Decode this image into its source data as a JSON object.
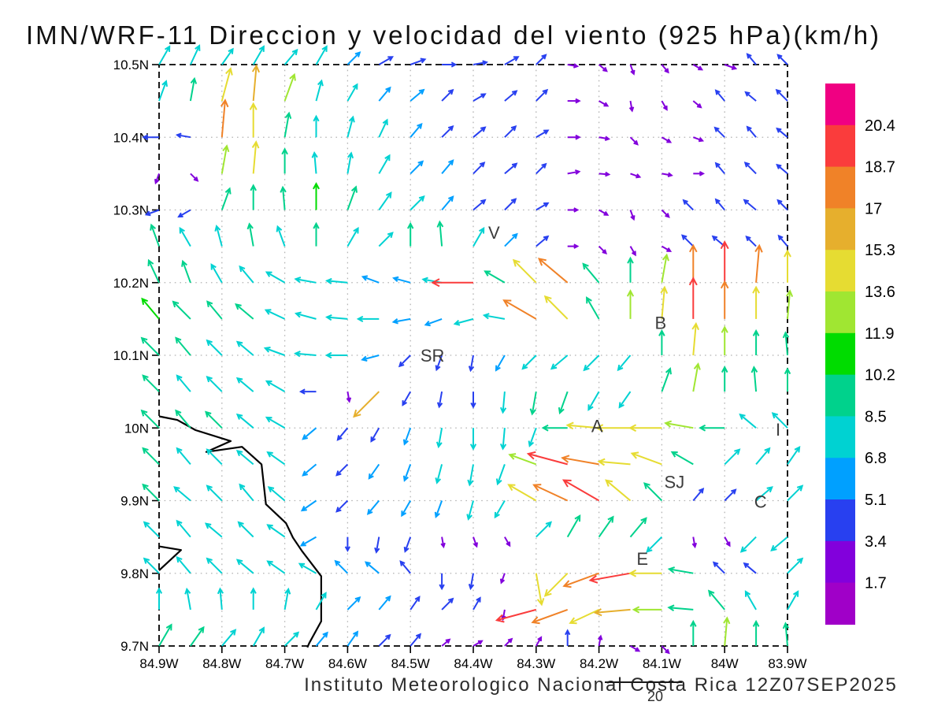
{
  "chart_data": {
    "type": "vector-field-map",
    "title": "IMN/WRF-11 Direccion y velocidad del viento (925 hPa)(km/h)",
    "units": "km/h",
    "pressure_level": "925 hPa",
    "model": "IMN/WRF-11",
    "footer": {
      "text": "Instituto Meteorologico Nacional Costa Rica  12Z07SEP2025",
      "page_number": "20"
    },
    "axes": {
      "lon_range": [
        -84.9,
        -83.9
      ],
      "lat_range": [
        9.7,
        10.5
      ],
      "x_tick_labels": [
        "84.9W",
        "84.8W",
        "84.7W",
        "84.6W",
        "84.5W",
        "84.4W",
        "84.3W",
        "84.2W",
        "84.1W",
        "84W",
        "83.9W"
      ],
      "y_tick_labels": [
        "10.5N",
        "10.4N",
        "10.3N",
        "10.2N",
        "10.1N",
        "10N",
        "9.9N",
        "9.8N",
        "9.7N"
      ],
      "grid": "dotted 0.1 degree"
    },
    "colorbar": {
      "position": "right",
      "boundary_labels": [
        "20.4",
        "18.7",
        "17",
        "15.3",
        "13.6",
        "11.9",
        "10.2",
        "8.5",
        "6.8",
        "5.1",
        "3.4",
        "1.7"
      ],
      "levels": [
        1.7,
        3.4,
        5.1,
        6.8,
        8.5,
        10.2,
        11.9,
        13.6,
        15.3,
        17,
        18.7,
        20.4
      ],
      "colors_low_to_high": [
        "#A000C8",
        "#8200DC",
        "#2840F0",
        "#00A0FF",
        "#00D2D2",
        "#00D28C",
        "#00DC00",
        "#A0E632",
        "#E6DC32",
        "#E6AF2D",
        "#F08228",
        "#FA3C3C",
        "#F00082"
      ]
    },
    "stations": [
      {
        "label": "V",
        "lon": -84.367,
        "lat": 10.268
      },
      {
        "label": "B",
        "lon": -84.102,
        "lat": 10.144
      },
      {
        "label": "SR",
        "lon": -84.465,
        "lat": 10.099
      },
      {
        "label": "A",
        "lon": -84.203,
        "lat": 10.002
      },
      {
        "label": "I",
        "lon": -83.915,
        "lat": 9.997
      },
      {
        "label": "SJ",
        "lon": -84.08,
        "lat": 9.925
      },
      {
        "label": "C",
        "lon": -83.943,
        "lat": 9.898
      },
      {
        "label": "E",
        "lon": -84.131,
        "lat": 9.819
      }
    ],
    "coastlines": [
      [
        [
          -84.9,
          10.016
        ],
        [
          -84.871,
          10.011
        ],
        [
          -84.842,
          9.997
        ],
        [
          -84.786,
          9.982
        ],
        [
          -84.825,
          9.967
        ],
        [
          -84.768,
          9.974
        ],
        [
          -84.737,
          9.95
        ],
        [
          -84.73,
          9.895
        ],
        [
          -84.698,
          9.869
        ],
        [
          -84.687,
          9.849
        ],
        [
          -84.672,
          9.83
        ],
        [
          -84.642,
          9.796
        ],
        [
          -84.642,
          9.734
        ],
        [
          -84.661,
          9.704
        ],
        [
          -84.664,
          9.698
        ]
      ],
      [
        [
          -84.9,
          9.837
        ],
        [
          -84.865,
          9.832
        ],
        [
          -84.9,
          9.804
        ]
      ]
    ],
    "wind": {
      "note": "dir:speed tokens; dir degrees toward (0=N up, 90=E right), speed km/h; grid lon -84.9..-83.9 step 0.05, lat 10.5..9.7 step -0.05",
      "grid": {
        "lon0": -84.9,
        "dlon": 0.05,
        "ncols": 21,
        "lat0": 10.5,
        "dlat": -0.05,
        "nrows": 17
      },
      "rows": [
        "30:8 25:8 35:7 30:8 40:7 30:8 45:6 60:5 70:5 90:4 80:4 60:5 45:4 100:2 130:2 160:2 140:2 120:2 110:3 320:4 315:4",
        "20:8 10:9 15:15 5:16 20:12 15:8 30:7 40:6 50:6 45:5 60:4 50:5 45:5 90:3 120:2 170:2 150:2 130:2 320:4 310:4 315:5",
        "270:5 280:4 5:17 0:15 10:10 0:8 15:8 25:7 40:6 45:5 50:5 45:5 60:4 90:3 100:2 135:2 120:2 110:2 315:4 320:4 310:4",
        "200:2 135:2 10:12 5:14 0:10 355:8 10:8 30:8 45:6 40:6 45:5 50:5 45:4 80:3 95:2 110:2 100:2 90:2 320:4 315:5 310:4",
        "250:4 240:4 20:9 0:10 355:9 0:11 20:10 35:8 45:7 40:6 50:5 45:5 60:4 90:2 120:2 160:2 135:2 315:4 320:4 310:5 315:4",
        "340:9 330:8 345:8 350:9 340:8 0:9 30:8 45:7 0:9 355:10 30:8 45:6 50:5 90:2 135:2 150:2 120:2 315:5 310:5 315:4 320:4",
        "335:10 340:9 330:8 320:8 300:8 280:8 275:8 290:6 285:6 280:7 270:19 300:9 315:14 310:17 320:10 0:10 10:12 0:17 0:19 5:17 0:14",
        "320:11 315:10 320:9 310:9 295:8 285:8 275:8 270:8 260:6 250:6 255:7 280:8 300:17 315:14 330:10 0:12 5:14 0:19 0:17 0:14 5:12",
        "315:10 320:9 315:8 310:8 290:8 275:8 270:8 255:6 225:5 200:5 190:5 210:6 225:7 230:8 225:8 220:7 0:10 5:14 0:12 0:10 355:9",
        "315:9 320:8 315:8 310:8 300:8 270:5 170:2 225:16 210:5 190:5 180:5 185:8 190:9 200:9 210:8 215:7 20:10 10:12 0:10 355:10 0:9",
        "315:10 320:9 315:9 310:8 300:8 230:6 220:5 210:5 200:6 190:7 180:8 185:8 200:7 270:10 275:14 270:15 270:14 280:12 270:10 310:8 315:8",
        "315:9 320:8 315:8 310:8 305:8 230:6 225:5 215:6 200:6 195:7 190:8 200:8 290:12 285:19 280:17 275:14 290:14 300:10 45:8 40:8 35:8",
        "315:9 310:8 315:8 320:8 310:8 235:6 225:5 220:6 210:6 200:6 195:7 210:7 300:14 295:17 300:19 310:14 315:10 40:5 45:5 50:8 45:8",
        "315:8 320:8 310:8 315:8 305:8 240:6 180:4 190:5 200:5 170:2 160:2 150:2 45:8 30:10 35:10 40:10 225:8 170:2 150:2 225:8 230:8",
        "315:8 320:8 315:8 310:8 305:8 300:7 315:6 310:6 320:5 180:5 190:5 200:2 170:14 225:14 250:17 260:19 270:14 280:10 315:5 310:5 45:8",
        "0:8 350:8 355:8 0:8 10:8 30:7 45:6 40:6 35:5 45:5 30:4 190:2 255:19 250:17 245:14 265:16 270:12 275:10 320:10 330:8 30:8",
        "30:10 35:9 40:8 30:8 45:7 40:6 35:6 45:5 40:5 50:2 60:2 45:2 30:2 0:5 10:2 120:2 135:2 0:10 5:12 0:10 355:9"
      ]
    },
    "style": {
      "frame_color": "#000000",
      "grid_color": "#b4b4b4",
      "station_label_color": "#3c3c3c",
      "coast_color": "#000000"
    }
  }
}
